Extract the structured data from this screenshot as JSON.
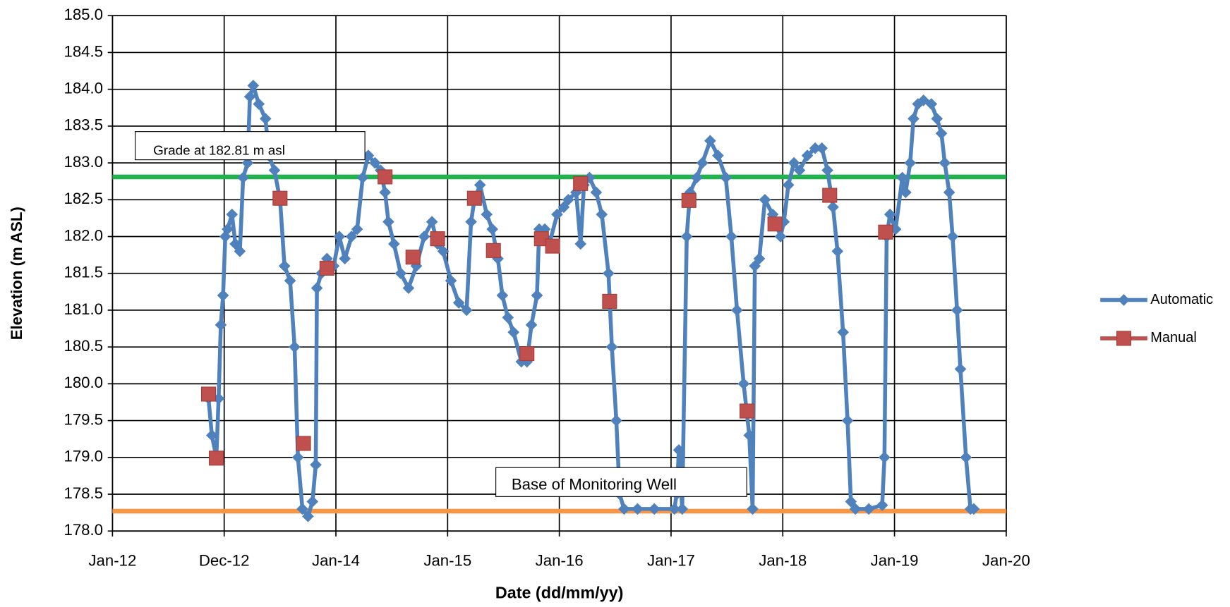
{
  "chart_data": {
    "type": "line",
    "xlabel": "Date (dd/mm/yy)",
    "ylabel": "Elevation (m ASL)",
    "xlim": [
      2012,
      2020
    ],
    "xticks": [
      {
        "value": 2012,
        "label": "Jan-12"
      },
      {
        "value": 2013,
        "label": "Dec-12"
      },
      {
        "value": 2014,
        "label": "Jan-14"
      },
      {
        "value": 2015,
        "label": "Jan-15"
      },
      {
        "value": 2016,
        "label": "Jan-16"
      },
      {
        "value": 2017,
        "label": "Jan-17"
      },
      {
        "value": 2018,
        "label": "Jan-18"
      },
      {
        "value": 2019,
        "label": "Jan-19"
      },
      {
        "value": 2020,
        "label": "Jan-20"
      }
    ],
    "ylim": [
      178,
      185
    ],
    "yticks": [
      {
        "value": 178,
        "label": "178.0"
      },
      {
        "value": 178.5,
        "label": "178.5"
      },
      {
        "value": 179,
        "label": "179.0"
      },
      {
        "value": 179.5,
        "label": "179.5"
      },
      {
        "value": 180,
        "label": "180.0"
      },
      {
        "value": 180.5,
        "label": "180.5"
      },
      {
        "value": 181,
        "label": "181.0"
      },
      {
        "value": 181.5,
        "label": "181.5"
      },
      {
        "value": 182,
        "label": "182.0"
      },
      {
        "value": 182.5,
        "label": "182.5"
      },
      {
        "value": 183,
        "label": "183.0"
      },
      {
        "value": 183.5,
        "label": "183.5"
      },
      {
        "value": 184,
        "label": "184.0"
      },
      {
        "value": 184.5,
        "label": "184.5"
      },
      {
        "value": 185,
        "label": "185.0"
      }
    ],
    "grid": true,
    "legend": "right",
    "series": [
      {
        "name": "Automatic",
        "color": "#4f81bd",
        "marker": "diamond",
        "line": true,
        "x": [
          2012.86,
          2012.89,
          2012.93,
          2012.95,
          2012.97,
          2012.99,
          2013.01,
          2013.03,
          2013.07,
          2013.1,
          2013.14,
          2013.17,
          2013.21,
          2013.23,
          2013.26,
          2013.31,
          2013.37,
          2013.4,
          2013.45,
          2013.5,
          2013.54,
          2013.59,
          2013.63,
          2013.66,
          2013.7,
          2013.75,
          2013.79,
          2013.82,
          2013.83,
          2013.87,
          2013.92,
          2013.98,
          2014.03,
          2014.08,
          2014.14,
          2014.19,
          2014.24,
          2014.29,
          2014.35,
          2014.4,
          2014.44,
          2014.47,
          2014.52,
          2014.58,
          2014.65,
          2014.72,
          2014.79,
          2014.86,
          2014.91,
          2014.96,
          2015.03,
          2015.1,
          2015.17,
          2015.21,
          2015.24,
          2015.29,
          2015.35,
          2015.4,
          2015.45,
          2015.49,
          2015.54,
          2015.59,
          2015.66,
          2015.71,
          2015.75,
          2015.8,
          2015.82,
          2015.87,
          2015.91,
          2015.98,
          2016.04,
          2016.08,
          2016.15,
          2016.19,
          2016.22,
          2016.27,
          2016.33,
          2016.38,
          2016.44,
          2016.47,
          2016.51,
          2016.54,
          2016.58,
          2016.7,
          2016.85,
          2017.03,
          2017.05,
          2017.07,
          2017.1,
          2017.14,
          2017.17,
          2017.23,
          2017.28,
          2017.35,
          2017.42,
          2017.49,
          2017.54,
          2017.59,
          2017.65,
          2017.7,
          2017.73,
          2017.75,
          2017.79,
          2017.84,
          2017.91,
          2017.98,
          2018.01,
          2018.05,
          2018.1,
          2018.15,
          2018.22,
          2018.29,
          2018.35,
          2018.4,
          2018.45,
          2018.49,
          2018.54,
          2018.58,
          2018.61,
          2018.65,
          2018.77,
          2018.89,
          2018.91,
          2018.93,
          2018.96,
          2019.01,
          2019.07,
          2019.1,
          2019.14,
          2019.17,
          2019.21,
          2019.26,
          2019.33,
          2019.38,
          2019.42,
          2019.45,
          2019.49,
          2019.52,
          2019.56,
          2019.59,
          2019.64,
          2019.68,
          2019.71
        ],
        "values": [
          179.8,
          179.3,
          179.0,
          179.8,
          180.8,
          181.2,
          182.0,
          182.1,
          182.3,
          181.9,
          181.8,
          182.8,
          183.0,
          183.9,
          184.05,
          183.8,
          183.6,
          183.1,
          182.9,
          182.5,
          181.6,
          181.4,
          180.5,
          179.0,
          178.3,
          178.2,
          178.4,
          178.9,
          181.3,
          181.5,
          181.7,
          181.6,
          182.0,
          181.7,
          182.0,
          182.1,
          182.8,
          183.1,
          183.0,
          182.9,
          182.6,
          182.2,
          181.9,
          181.5,
          181.3,
          181.6,
          182.0,
          182.2,
          181.9,
          181.8,
          181.4,
          181.1,
          181.0,
          182.2,
          182.5,
          182.7,
          182.3,
          182.1,
          181.7,
          181.2,
          180.9,
          180.7,
          180.3,
          180.3,
          180.8,
          181.2,
          182.1,
          182.1,
          181.9,
          182.3,
          182.4,
          182.5,
          182.6,
          181.9,
          182.7,
          182.8,
          182.6,
          182.3,
          181.5,
          180.5,
          179.5,
          178.5,
          178.3,
          178.3,
          178.3,
          178.3,
          178.5,
          179.1,
          178.3,
          182.0,
          182.6,
          182.8,
          183.0,
          183.3,
          183.1,
          182.8,
          182.0,
          181.0,
          180.0,
          179.3,
          178.3,
          181.6,
          181.7,
          182.5,
          182.3,
          182.0,
          182.2,
          182.7,
          183.0,
          182.9,
          183.1,
          183.2,
          183.2,
          182.9,
          182.4,
          181.8,
          180.7,
          179.5,
          178.4,
          178.3,
          178.3,
          178.35,
          179.0,
          182.0,
          182.3,
          182.1,
          182.8,
          182.6,
          183.0,
          183.6,
          183.8,
          183.85,
          183.8,
          183.6,
          183.4,
          183.0,
          182.6,
          182.0,
          181.0,
          180.2,
          179.0,
          178.3,
          178.3
        ]
      },
      {
        "name": "Manual",
        "color": "#c0504d",
        "marker": "square",
        "line": false,
        "x": [
          2012.86,
          2012.93,
          2013.5,
          2013.71,
          2013.92,
          2014.44,
          2014.69,
          2014.91,
          2015.24,
          2015.41,
          2015.71,
          2015.84,
          2015.94,
          2016.19,
          2016.45,
          2017.16,
          2017.68,
          2017.93,
          2018.42,
          2018.92
        ],
        "values": [
          179.86,
          178.99,
          182.52,
          179.19,
          181.57,
          182.81,
          181.72,
          181.97,
          182.52,
          181.81,
          180.41,
          181.97,
          181.87,
          182.72,
          181.12,
          182.49,
          179.63,
          182.17,
          182.56,
          182.06
        ]
      }
    ],
    "reference_lines": [
      {
        "value": 182.81,
        "color": "#22b14c",
        "label": "Grade at 182.81 m asl"
      },
      {
        "value": 178.27,
        "color": "#f79646",
        "label": "Base of Monitoring Well"
      }
    ]
  }
}
